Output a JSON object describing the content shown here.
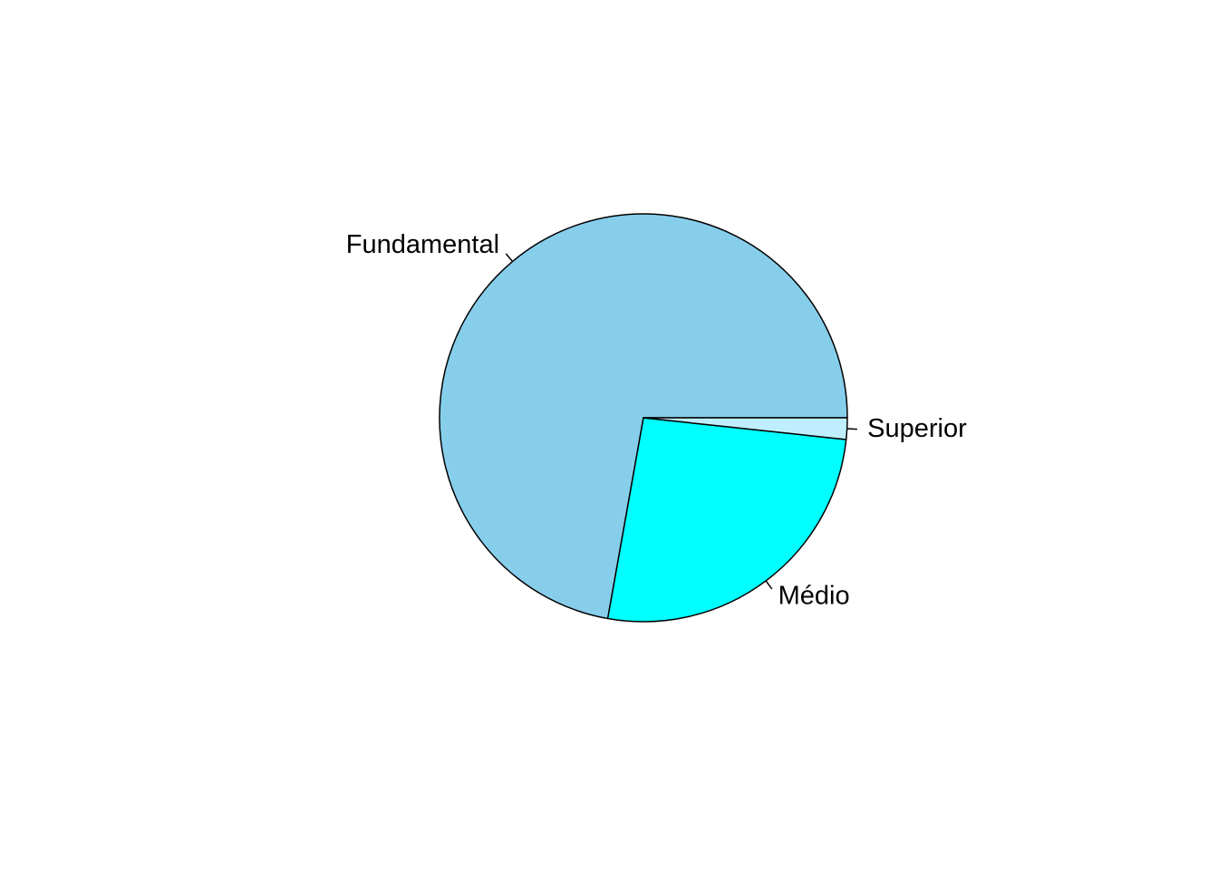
{
  "chart_data": {
    "type": "pie",
    "categories": [
      "Fundamental",
      "Médio",
      "Superior"
    ],
    "values": [
      72.2,
      26.1,
      1.7
    ],
    "colors": [
      "#87CEEB",
      "#00FFFF",
      "#BFEFFF"
    ],
    "direction": "counterclockwise",
    "start_angle_deg": 0,
    "title": "",
    "legend": "none"
  }
}
